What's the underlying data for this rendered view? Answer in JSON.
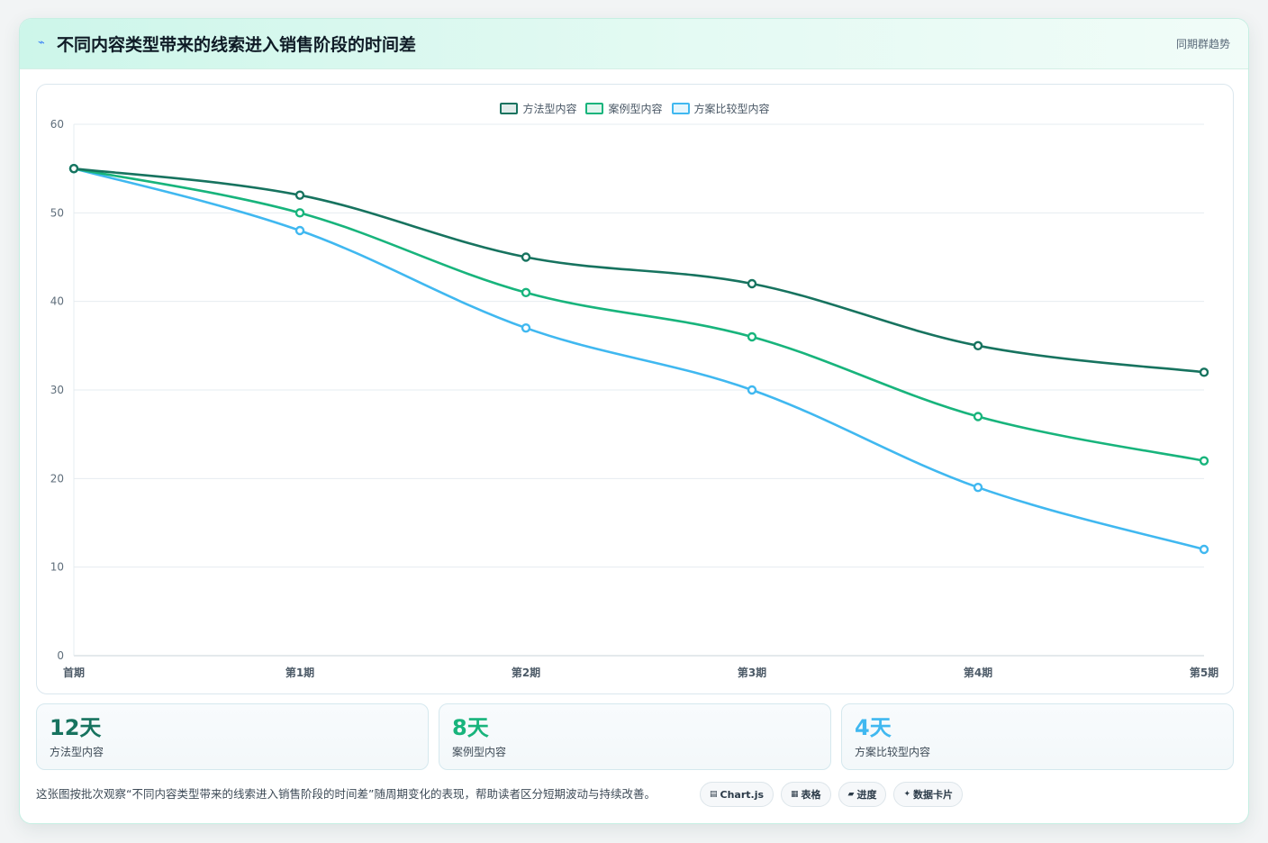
{
  "header": {
    "icon": "lightning-icon",
    "title": "不同内容类型带来的线索进入销售阶段的时间差",
    "tag": "同期群趋势"
  },
  "chart_data": {
    "type": "line",
    "title": "",
    "xlabel": "",
    "ylabel": "",
    "categories": [
      "首期",
      "第1期",
      "第2期",
      "第3期",
      "第4期",
      "第5期"
    ],
    "ylim": [
      0,
      60
    ],
    "yticks": [
      0,
      10,
      20,
      30,
      40,
      50,
      60
    ],
    "grid": true,
    "legend_position": "top-center",
    "series": [
      {
        "name": "方法型内容",
        "values": [
          55,
          52,
          45,
          42,
          35,
          32
        ],
        "color": "#17735f"
      },
      {
        "name": "案例型内容",
        "values": [
          55,
          50,
          41,
          36,
          27,
          22
        ],
        "color": "#18b47c"
      },
      {
        "name": "方案比较型内容",
        "values": [
          55,
          48,
          37,
          30,
          19,
          12
        ],
        "color": "#40b8f0"
      }
    ]
  },
  "stats": [
    {
      "value": "12天",
      "label": "方法型内容",
      "color": "#17735f"
    },
    {
      "value": "8天",
      "label": "案例型内容",
      "color": "#18b47c"
    },
    {
      "value": "4天",
      "label": "方案比较型内容",
      "color": "#40b8f0"
    }
  ],
  "footer": {
    "text": "这张图按批次观察“不同内容类型带来的线索进入销售阶段的时间差”随周期变化的表现，帮助读者区分短期波动与持续改善。",
    "chips": [
      {
        "icon": "▤",
        "label": "Chart.js"
      },
      {
        "icon": "▦",
        "label": "表格"
      },
      {
        "icon": "▰",
        "label": "进度"
      },
      {
        "icon": "✦",
        "label": "数据卡片"
      }
    ]
  }
}
